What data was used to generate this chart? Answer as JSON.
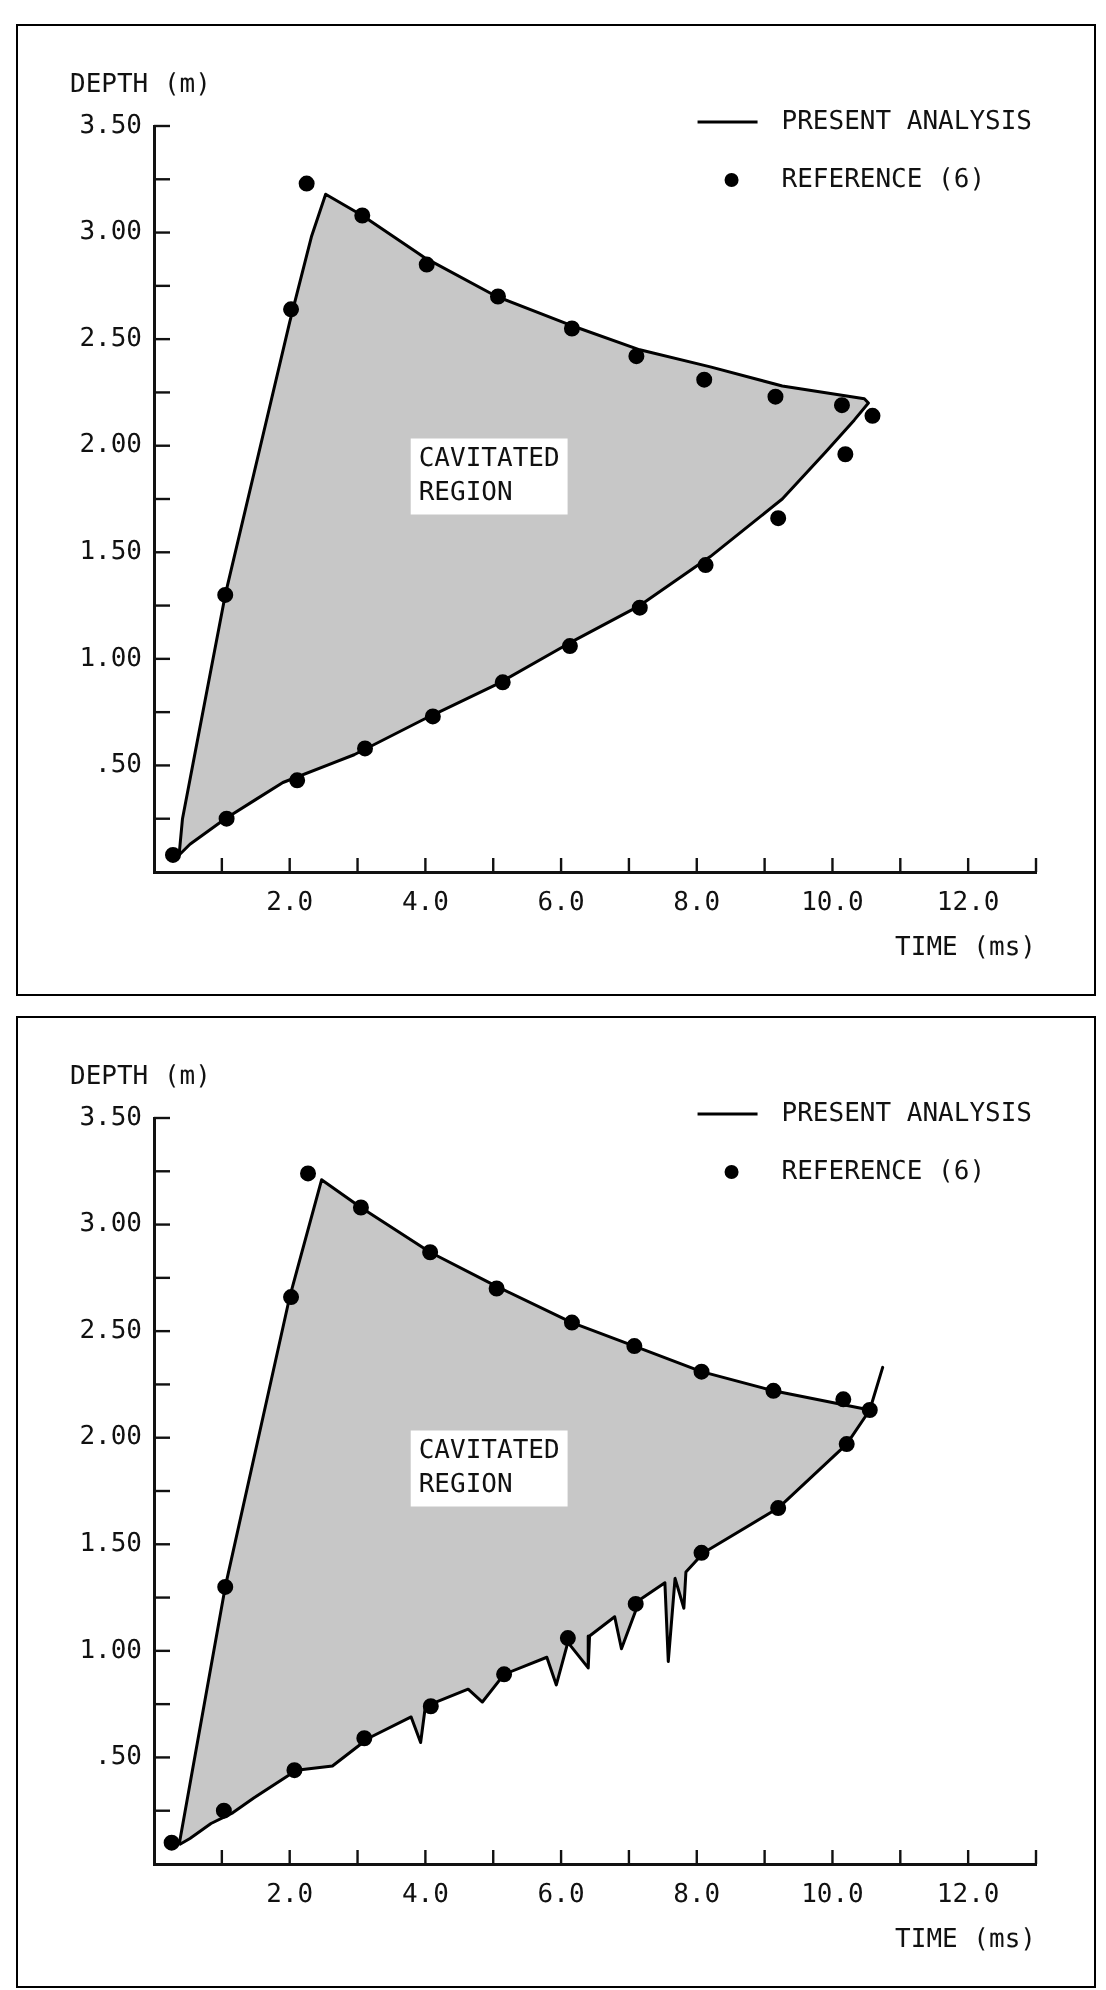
{
  "chart_data": [
    {
      "type": "scatter",
      "xlabel": "TIME (ms)",
      "ylabel": "DEPTH (m)",
      "xlim": [
        0,
        13
      ],
      "ylim": [
        0,
        3.5
      ],
      "xticks": [
        {
          "value": 1,
          "label": null
        },
        {
          "value": 2,
          "label": "2.0"
        },
        {
          "value": 3,
          "label": null
        },
        {
          "value": 4,
          "label": "4.0"
        },
        {
          "value": 5,
          "label": null
        },
        {
          "value": 6,
          "label": "6.0"
        },
        {
          "value": 7,
          "label": null
        },
        {
          "value": 8,
          "label": "8.0"
        },
        {
          "value": 9,
          "label": null
        },
        {
          "value": 10,
          "label": "10.0"
        },
        {
          "value": 11,
          "label": null
        },
        {
          "value": 12,
          "label": "12.0"
        },
        {
          "value": 13,
          "label": null
        }
      ],
      "yticks": [
        {
          "value": 0.25,
          "label": null
        },
        {
          "value": 0.5,
          "label": ".50"
        },
        {
          "value": 0.75,
          "label": null
        },
        {
          "value": 1,
          "label": "1.00"
        },
        {
          "value": 1.25,
          "label": null
        },
        {
          "value": 1.5,
          "label": "1.50"
        },
        {
          "value": 1.75,
          "label": null
        },
        {
          "value": 2,
          "label": "2.00"
        },
        {
          "value": 2.25,
          "label": null
        },
        {
          "value": 2.5,
          "label": "2.50"
        },
        {
          "value": 2.75,
          "label": null
        },
        {
          "value": 3,
          "label": "3.00"
        },
        {
          "value": 3.25,
          "label": null
        },
        {
          "value": 3.5,
          "label": "3.50"
        }
      ],
      "grid": false,
      "legend": "top right",
      "annotations": [
        "CAVITATED REGION"
      ],
      "series": [
        {
          "name": "PRESENT ANALYSIS",
          "type": "area",
          "color": "#000000",
          "marker": "none",
          "x": [
            0.37,
            0.42,
            1.05,
            2.0,
            2.32,
            2.53,
            3.07,
            4.0,
            5.05,
            6.1,
            7.16,
            8.2,
            9.26,
            10.47,
            10.53,
            10.32,
            9.9,
            9.26,
            8.2,
            7.16,
            6.1,
            5.05,
            4.0,
            2.95,
            1.9,
            1.05,
            0.53,
            0.37
          ],
          "values": [
            0.08,
            0.25,
            1.3,
            2.58,
            2.98,
            3.18,
            3.08,
            2.88,
            2.7,
            2.57,
            2.45,
            2.37,
            2.28,
            2.22,
            2.2,
            2.12,
            1.97,
            1.75,
            1.48,
            1.25,
            1.07,
            0.88,
            0.72,
            0.55,
            0.42,
            0.25,
            0.13,
            0.08
          ]
        },
        {
          "name": "REFERENCE (6)",
          "type": "scatter",
          "color": "#000000",
          "marker": "circle",
          "x": [
            0.28,
            1.05,
            2.02,
            2.25,
            3.07,
            4.02,
            5.07,
            6.16,
            7.11,
            8.11,
            9.16,
            10.14,
            10.59,
            10.19,
            9.2,
            8.13,
            7.16,
            6.13,
            5.14,
            4.11,
            3.11,
            2.11,
            1.07
          ],
          "values": [
            0.08,
            1.3,
            2.64,
            3.23,
            3.08,
            2.85,
            2.7,
            2.55,
            2.42,
            2.31,
            2.23,
            2.19,
            2.14,
            1.96,
            1.66,
            1.44,
            1.24,
            1.06,
            0.89,
            0.73,
            0.58,
            0.43,
            0.25
          ]
        }
      ]
    },
    {
      "type": "scatter",
      "xlabel": "TIME (ms)",
      "ylabel": "DEPTH (m)",
      "xlim": [
        0,
        13
      ],
      "ylim": [
        0,
        3.5
      ],
      "xticks": [
        {
          "value": 1,
          "label": null
        },
        {
          "value": 2,
          "label": "2.0"
        },
        {
          "value": 3,
          "label": null
        },
        {
          "value": 4,
          "label": "4.0"
        },
        {
          "value": 5,
          "label": null
        },
        {
          "value": 6,
          "label": "6.0"
        },
        {
          "value": 7,
          "label": null
        },
        {
          "value": 8,
          "label": "8.0"
        },
        {
          "value": 9,
          "label": null
        },
        {
          "value": 10,
          "label": "10.0"
        },
        {
          "value": 11,
          "label": null
        },
        {
          "value": 12,
          "label": "12.0"
        },
        {
          "value": 13,
          "label": null
        }
      ],
      "yticks": [
        {
          "value": 0.25,
          "label": null
        },
        {
          "value": 0.5,
          "label": ".50"
        },
        {
          "value": 0.75,
          "label": null
        },
        {
          "value": 1,
          "label": "1.00"
        },
        {
          "value": 1.25,
          "label": null
        },
        {
          "value": 1.5,
          "label": "1.50"
        },
        {
          "value": 1.75,
          "label": null
        },
        {
          "value": 2,
          "label": "2.00"
        },
        {
          "value": 2.25,
          "label": null
        },
        {
          "value": 2.5,
          "label": "2.50"
        },
        {
          "value": 2.75,
          "label": null
        },
        {
          "value": 3,
          "label": "3.00"
        },
        {
          "value": 3.25,
          "label": null
        },
        {
          "value": 3.5,
          "label": "3.50"
        }
      ],
      "grid": false,
      "legend": "top right",
      "annotations": [
        "CAVITATED REGION"
      ],
      "series": [
        {
          "name": "PRESENT ANALYSIS",
          "type": "area",
          "color": "#000000",
          "marker": "none",
          "x": [
            0.37,
            1.05,
            2.0,
            2.47,
            3.05,
            4.07,
            5.05,
            6.16,
            7.08,
            8.07,
            9.13,
            10.55,
            10.74,
            10.55,
            10.21,
            9.2,
            8.1,
            7.84,
            7.81,
            7.68,
            7.58,
            7.53,
            7.16,
            6.89,
            6.79,
            6.42,
            6.4,
            6.1,
            5.93,
            5.79,
            5.16,
            4.84,
            4.63,
            4.0,
            3.93,
            3.79,
            3.16,
            2.63,
            2.1,
            1.47,
            1.16,
            0.84,
            0.53,
            0.37
          ],
          "values": [
            0.09,
            1.3,
            2.66,
            3.21,
            3.08,
            2.87,
            2.71,
            2.54,
            2.43,
            2.31,
            2.22,
            2.13,
            2.33,
            2.13,
            1.97,
            1.67,
            1.46,
            1.37,
            1.2,
            1.34,
            0.95,
            1.32,
            1.24,
            1.01,
            1.16,
            1.07,
            0.92,
            1.04,
            0.84,
            0.97,
            0.89,
            0.76,
            0.82,
            0.74,
            0.57,
            0.69,
            0.59,
            0.46,
            0.44,
            0.31,
            0.24,
            0.19,
            0.12,
            0.09
          ]
        },
        {
          "name": "REFERENCE (6)",
          "type": "scatter",
          "color": "#000000",
          "marker": "circle",
          "x": [
            0.26,
            1.05,
            2.02,
            2.27,
            3.05,
            4.07,
            5.05,
            6.16,
            7.08,
            8.07,
            9.13,
            10.16,
            10.55,
            10.21,
            9.2,
            8.07,
            7.1,
            6.1,
            5.16,
            4.08,
            3.1,
            2.07,
            1.03
          ],
          "values": [
            0.1,
            1.3,
            2.66,
            3.24,
            3.08,
            2.87,
            2.7,
            2.54,
            2.43,
            2.31,
            2.22,
            2.18,
            2.13,
            1.97,
            1.67,
            1.46,
            1.22,
            1.06,
            0.89,
            0.74,
            0.59,
            0.44,
            0.25
          ]
        }
      ]
    }
  ]
}
